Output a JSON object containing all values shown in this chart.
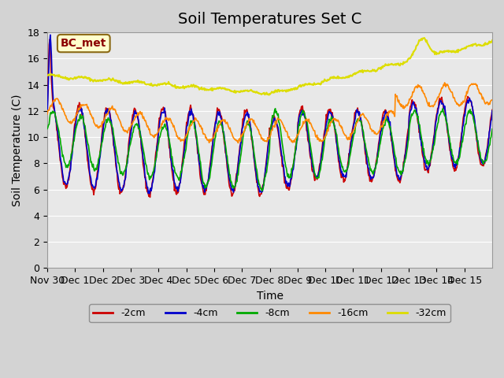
{
  "title": "Soil Temperatures Set C",
  "xlabel": "Time",
  "ylabel": "Soil Temperature (C)",
  "annotation": "BC_met",
  "ylim": [
    0,
    18
  ],
  "yticks": [
    0,
    2,
    4,
    6,
    8,
    10,
    12,
    14,
    16,
    18
  ],
  "xtick_labels": [
    "Nov 30",
    "Dec 1",
    "Dec 2",
    "Dec 3",
    "Dec 4",
    "Dec 5",
    "Dec 6",
    "Dec 7",
    "Dec 8",
    "Dec 9",
    "Dec 10",
    "Dec 11",
    "Dec 12",
    "Dec 13",
    "Dec 14",
    "Dec 15"
  ],
  "colors": {
    "-2cm": "#cc0000",
    "-4cm": "#0000cc",
    "-8cm": "#00aa00",
    "-16cm": "#ff8800",
    "-32cm": "#dddd00"
  },
  "background_color": "#d3d3d3",
  "plot_bg_color": "#e8e8e8",
  "title_fontsize": 14,
  "axis_fontsize": 10,
  "tick_fontsize": 9
}
